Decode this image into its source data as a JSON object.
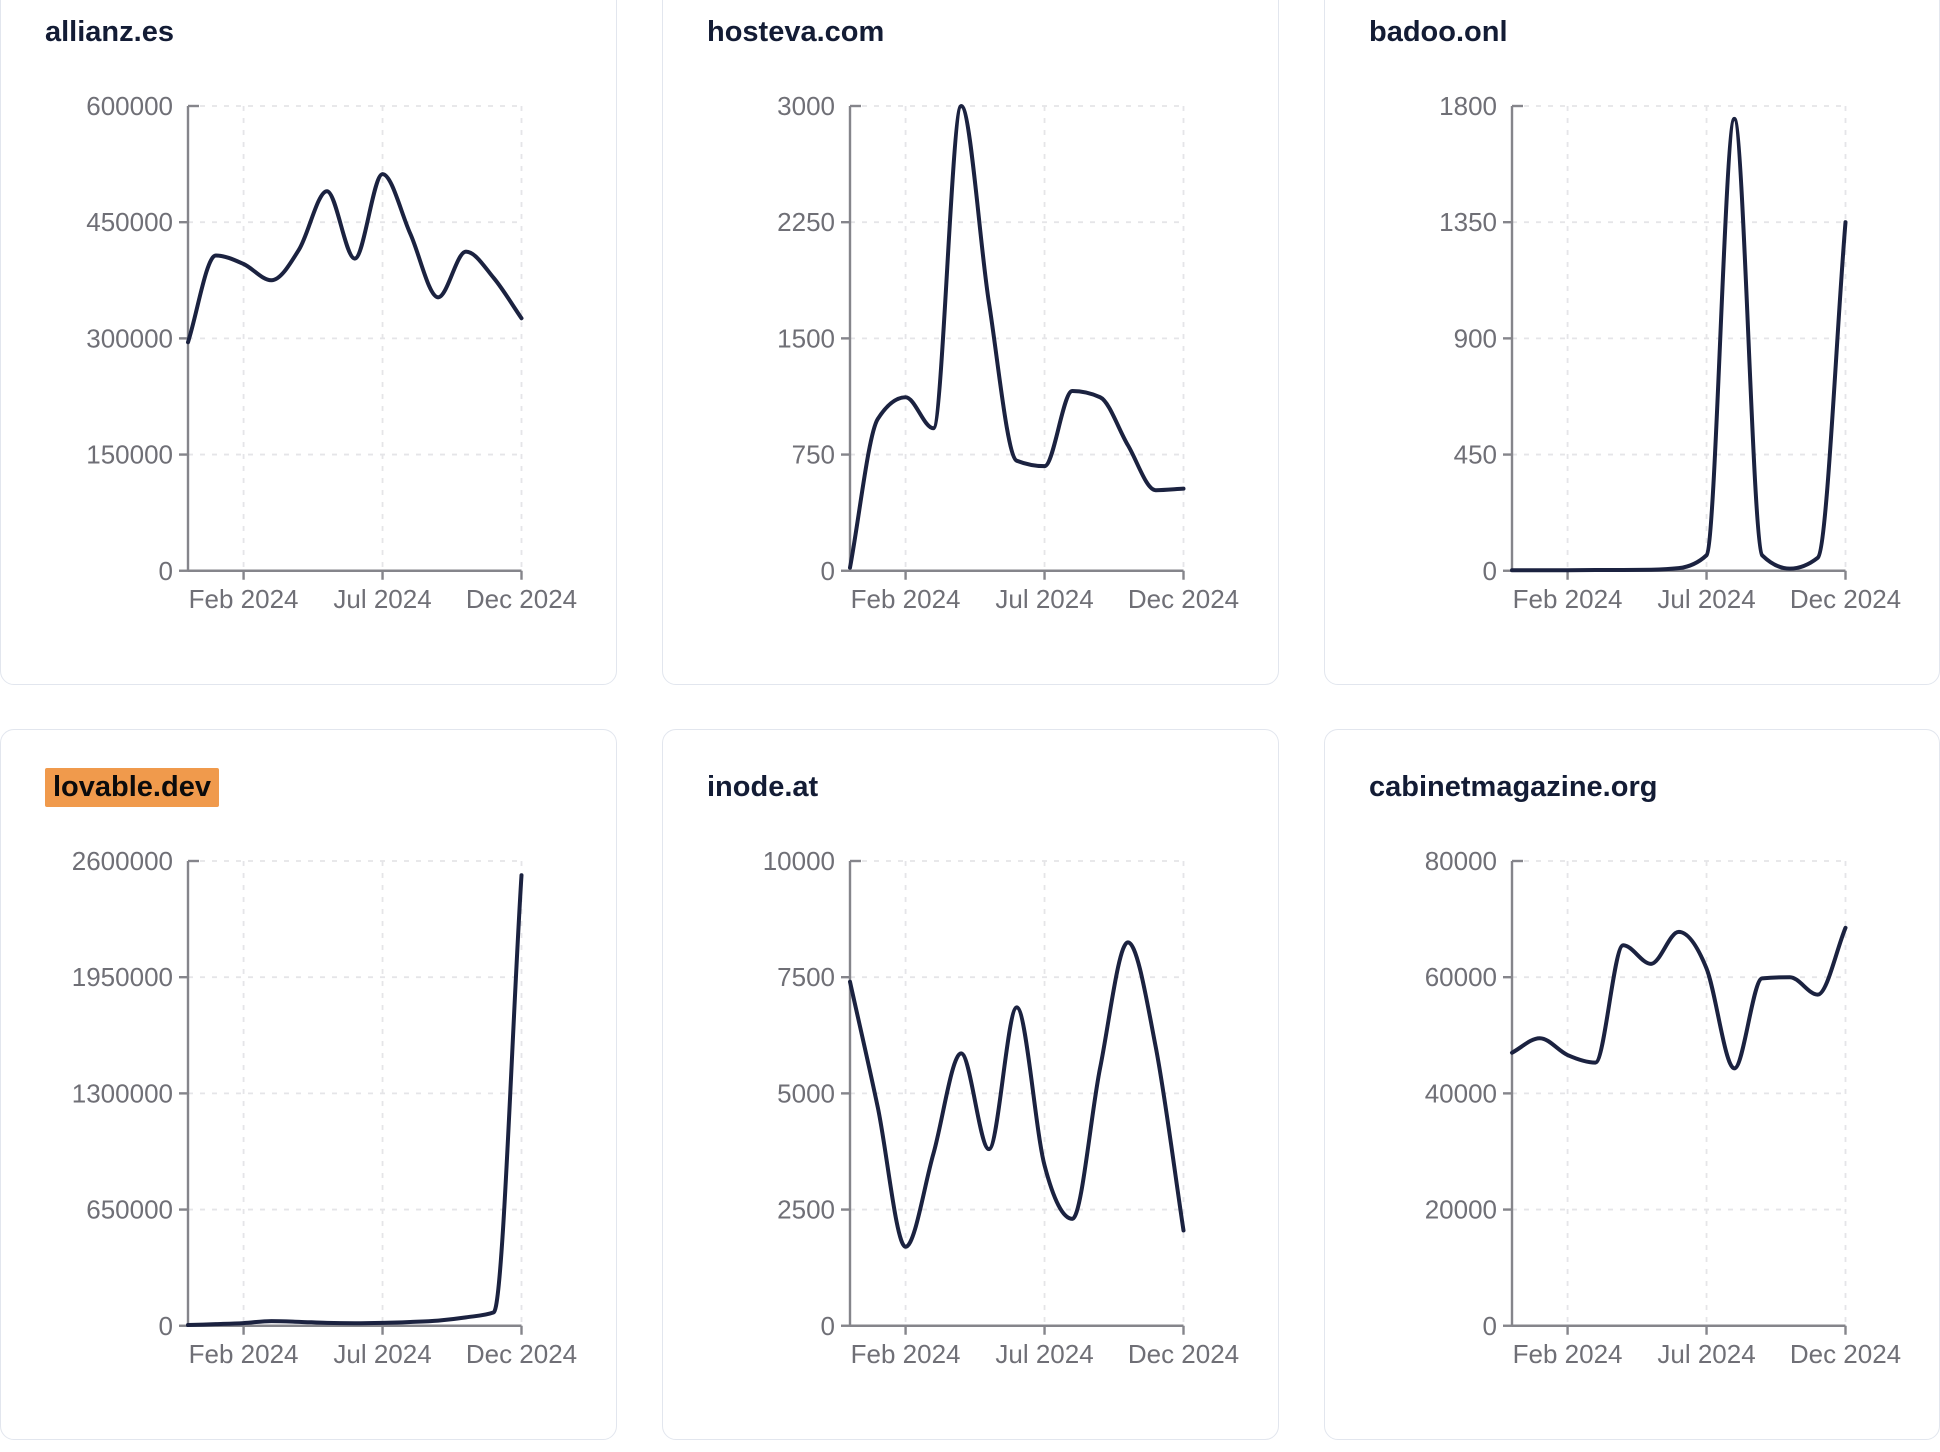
{
  "colors": {
    "line": "#1b2240",
    "title_text": "#131c35",
    "axis": "#85858b",
    "tick_text": "#6f6f76",
    "gridline": "#e5e5e8",
    "card_border": "#e2e6ee",
    "card_background": "#ffffff",
    "page_background": "#ffffff",
    "highlight_background": "#f09a4c",
    "highlight_text": "#0b0b0c"
  },
  "chart_data": {
    "type": "line",
    "x": [
      "Dec 2023",
      "Jan 2024",
      "Feb 2024",
      "Mar 2024",
      "Apr 2024",
      "May 2024",
      "Jun 2024",
      "Jul 2024",
      "Aug 2024",
      "Sep 2024",
      "Oct 2024",
      "Nov 2024",
      "Dec 2024"
    ],
    "x_axis_tick_labels": [
      "Feb 2024",
      "Jul 2024",
      "Dec 2024"
    ],
    "x_axis_tick_month_indices": [
      2,
      7,
      12
    ],
    "grid": "dashed",
    "legend": "none",
    "charts": [
      {
        "title": "allianz.es",
        "highlighted": false,
        "ylim": [
          0,
          600000
        ],
        "y_tick_labels": [
          "0",
          "150000",
          "300000",
          "450000",
          "600000"
        ],
        "values": [
          295000,
          407000,
          396000,
          375000,
          415000,
          490000,
          403000,
          512000,
          435000,
          353000,
          412000,
          378000,
          326000
        ]
      },
      {
        "title": "hosteva.com",
        "highlighted": false,
        "ylim": [
          0,
          3000
        ],
        "y_tick_labels": [
          "0",
          "750",
          "1500",
          "2250",
          "3000"
        ],
        "values": [
          20,
          980,
          1120,
          920,
          3000,
          1730,
          710,
          675,
          1160,
          1120,
          810,
          520,
          530
        ]
      },
      {
        "title": "badoo.onl",
        "highlighted": false,
        "ylim": [
          0,
          1800
        ],
        "y_tick_labels": [
          "0",
          "450",
          "900",
          "1350",
          "1800"
        ],
        "values": [
          2,
          2,
          2,
          3,
          3,
          4,
          10,
          60,
          1750,
          60,
          8,
          50,
          1350
        ]
      },
      {
        "title": "lovable.dev",
        "highlighted": true,
        "ylim": [
          0,
          2600000
        ],
        "y_tick_labels": [
          "0",
          "650000",
          "1300000",
          "1950000",
          "2600000"
        ],
        "values": [
          4000,
          9000,
          15000,
          26000,
          22000,
          16000,
          14000,
          16000,
          21000,
          29000,
          47000,
          75000,
          2520000
        ]
      },
      {
        "title": "inode.at",
        "highlighted": false,
        "ylim": [
          0,
          10000
        ],
        "y_tick_labels": [
          "0",
          "2500",
          "5000",
          "7500",
          "10000"
        ],
        "values": [
          7400,
          4700,
          1700,
          3700,
          5860,
          3800,
          6850,
          3450,
          2300,
          5550,
          8250,
          6000,
          2050
        ]
      },
      {
        "title": "cabinetmagazine.org",
        "highlighted": false,
        "ylim": [
          0,
          80000
        ],
        "y_tick_labels": [
          "0",
          "20000",
          "40000",
          "60000",
          "80000"
        ],
        "values": [
          47000,
          49500,
          46600,
          45300,
          65500,
          62300,
          67800,
          61500,
          44300,
          59800,
          60000,
          57000,
          68500
        ]
      }
    ]
  }
}
